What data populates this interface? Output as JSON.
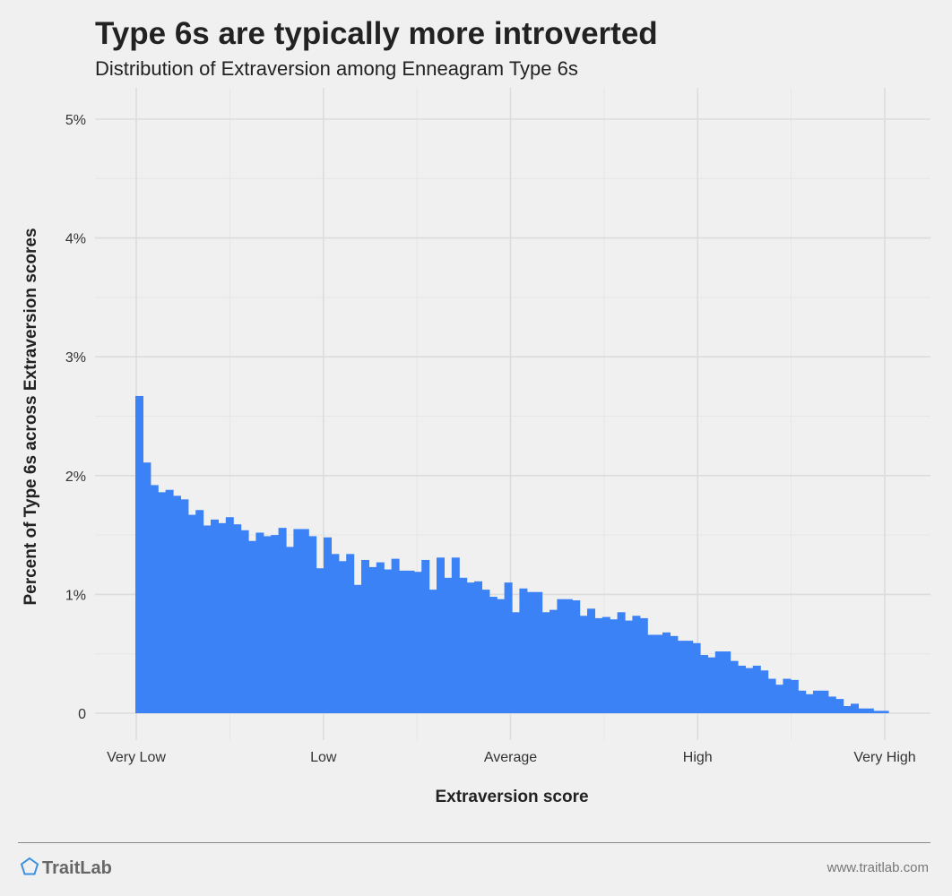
{
  "header": {
    "title": "Type 6s are typically more introverted",
    "subtitle": "Distribution of Extraversion among Enneagram Type 6s"
  },
  "footer": {
    "brand": "TraitLab",
    "url": "www.traitlab.com"
  },
  "colors": {
    "bar": "#3b82f6",
    "grid_major": "#dcdcdc",
    "grid_minor": "#e6e6e6",
    "background": "#f0f0f0",
    "logo": "#3b8fe0"
  },
  "icons": {
    "logo": "pentagon-icon"
  },
  "chart_data": {
    "type": "bar",
    "title": "Type 6s are typically more introverted",
    "subtitle": "Distribution of Extraversion among Enneagram Type 6s",
    "xlabel": "Extraversion score",
    "ylabel": "Percent of Type 6s across Extraversion scores",
    "x_tick_labels": [
      "Very Low",
      "Low",
      "Average",
      "High",
      "Very High"
    ],
    "y_tick_labels": [
      "0",
      "1%",
      "2%",
      "3%",
      "4%",
      "5%"
    ],
    "ylim": [
      0,
      5.0
    ],
    "grid": true,
    "series": [
      {
        "values": [
          2.67,
          2.11,
          1.92,
          1.86,
          1.88,
          1.83,
          1.8,
          1.67,
          1.71,
          1.58,
          1.63,
          1.6,
          1.65,
          1.59,
          1.54,
          1.45,
          1.52,
          1.49,
          1.5,
          1.56,
          1.4,
          1.55,
          1.55,
          1.49,
          1.22,
          1.48,
          1.34,
          1.28,
          1.34,
          1.08,
          1.29,
          1.23,
          1.27,
          1.21,
          1.3,
          1.2,
          1.2,
          1.19,
          1.29,
          1.04,
          1.31,
          1.14,
          1.31,
          1.14,
          1.1,
          1.11,
          1.04,
          0.98,
          0.96,
          1.1,
          0.85,
          1.05,
          1.02,
          1.02,
          0.85,
          0.87,
          0.96,
          0.96,
          0.95,
          0.82,
          0.88,
          0.8,
          0.81,
          0.79,
          0.85,
          0.78,
          0.82,
          0.8,
          0.66,
          0.66,
          0.68,
          0.65,
          0.61,
          0.61,
          0.59,
          0.49,
          0.47,
          0.52,
          0.52,
          0.44,
          0.4,
          0.38,
          0.4,
          0.36,
          0.29,
          0.24,
          0.29,
          0.28,
          0.19,
          0.16,
          0.19,
          0.19,
          0.14,
          0.12,
          0.06,
          0.08,
          0.04,
          0.04,
          0.02,
          0.02
        ]
      }
    ]
  }
}
